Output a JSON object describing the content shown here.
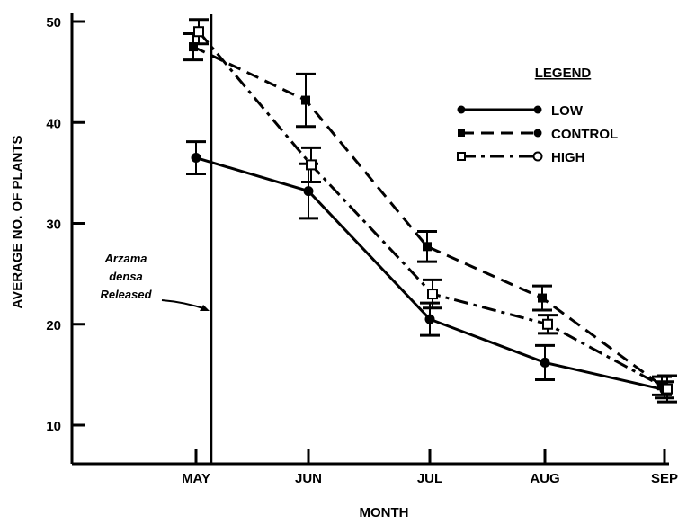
{
  "chart_data": {
    "type": "line",
    "title": "",
    "xlabel": "MONTH",
    "ylabel": "AVERAGE NO. OF PLANTS",
    "categories": [
      "MAY",
      "JUN",
      "JUL",
      "AUG",
      "SEP"
    ],
    "yticks": [
      10,
      20,
      30,
      40,
      50
    ],
    "ylim": [
      10,
      50
    ],
    "grid": false,
    "legend_title": "LEGEND",
    "legend_position": "top-right",
    "annotation": [
      "Arzama",
      "densa",
      "Released"
    ],
    "annotation_month": "MAY",
    "series": [
      {
        "name": "LOW",
        "line_style": "solid",
        "marker": "filled-circle",
        "values": [
          36.5,
          33.2,
          20.5,
          16.2,
          13.5
        ],
        "errors": [
          1.6,
          2.7,
          1.6,
          1.7,
          0.8
        ]
      },
      {
        "name": "CONTROL",
        "line_style": "dashed",
        "marker": "filled-square",
        "values": [
          47.5,
          42.2,
          27.7,
          22.6,
          13.9
        ],
        "errors": [
          1.3,
          2.6,
          1.5,
          1.2,
          0.9
        ]
      },
      {
        "name": "HIGH",
        "line_style": "dash-dot",
        "marker": "open-square",
        "values": [
          49.0,
          35.8,
          23.0,
          20.0,
          13.6
        ],
        "errors": [
          1.2,
          1.7,
          1.4,
          0.9,
          1.3
        ]
      }
    ]
  }
}
